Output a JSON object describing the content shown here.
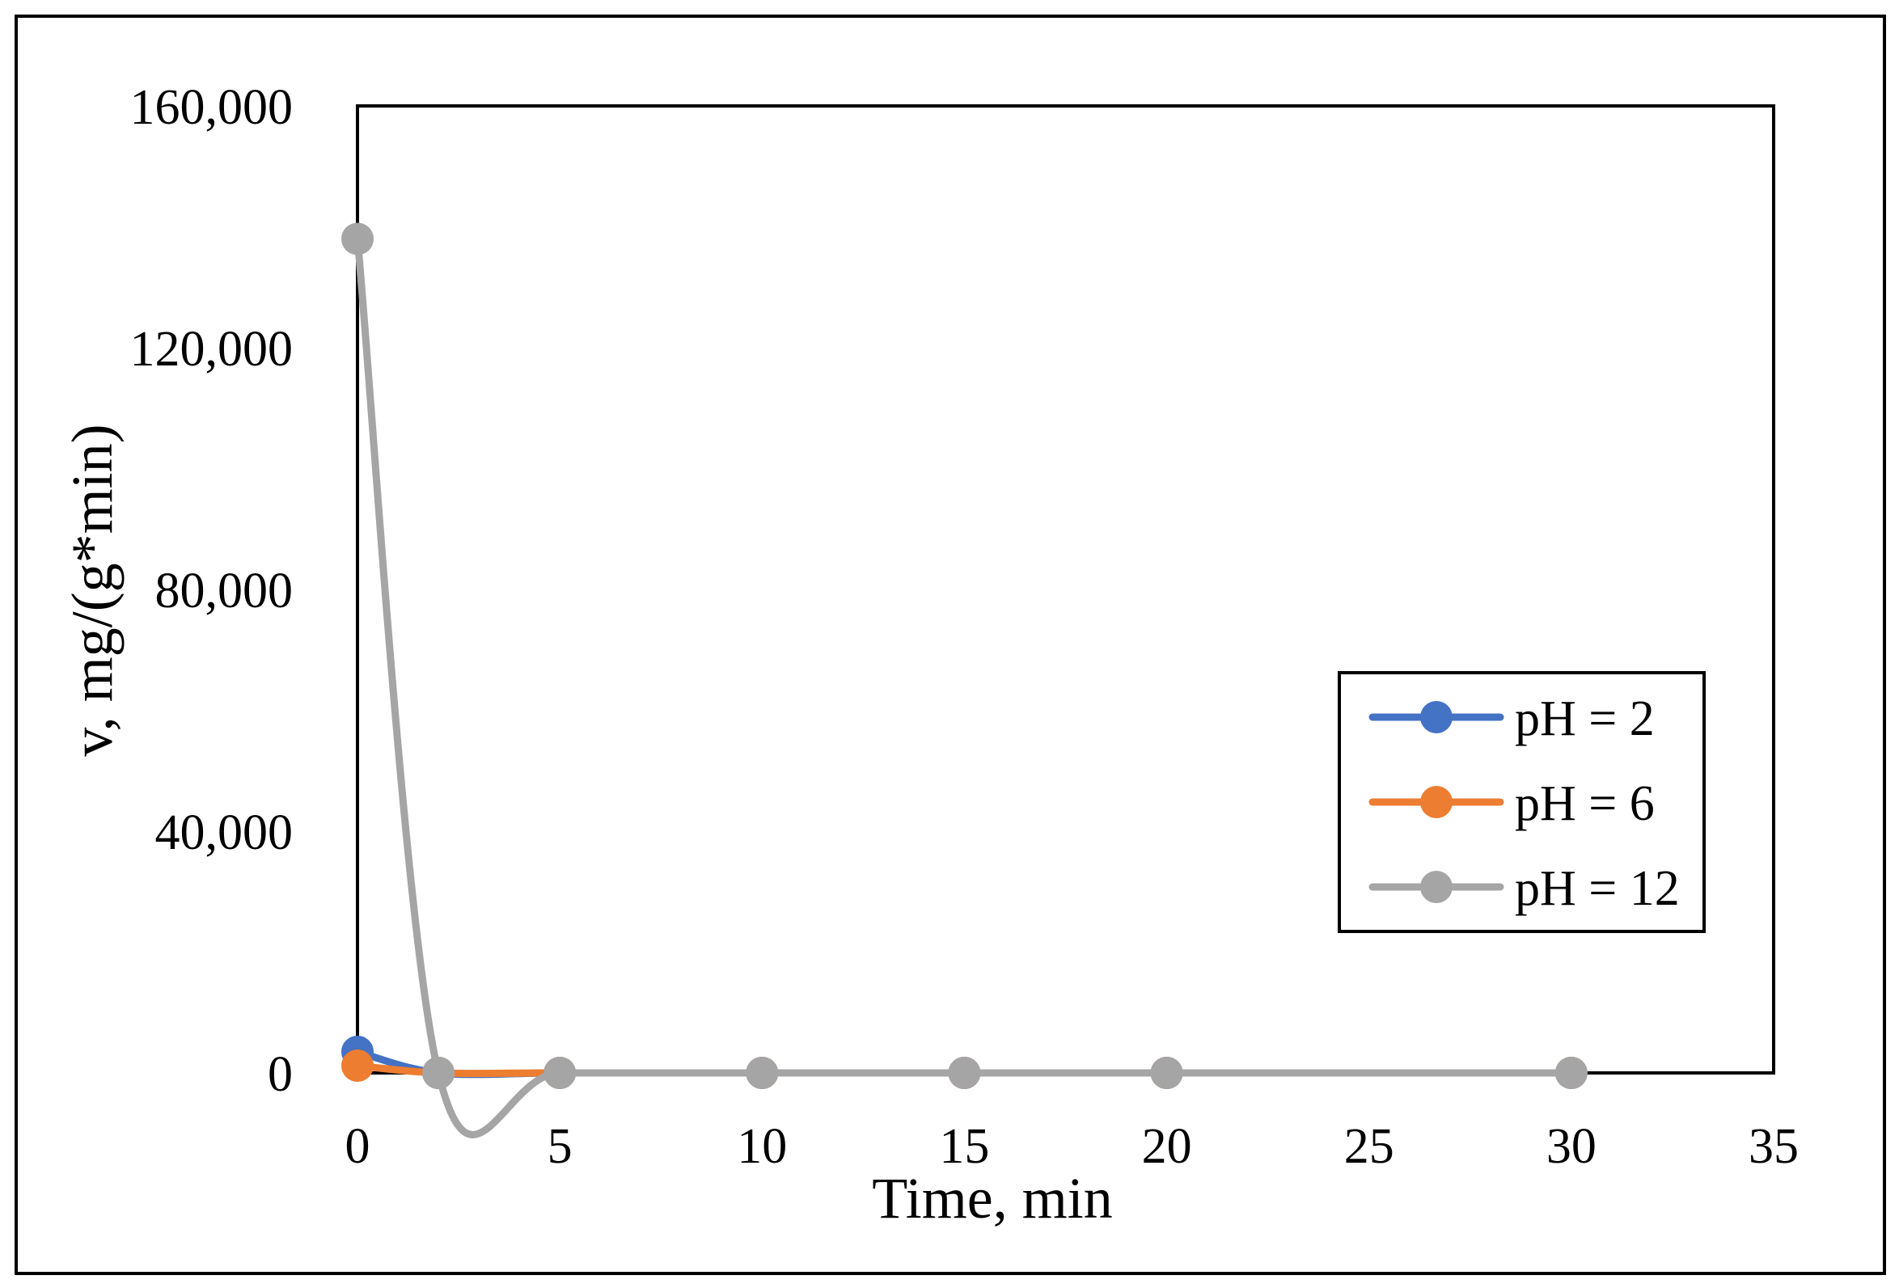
{
  "chart_data": {
    "type": "line",
    "title": "",
    "xlabel": "Time, min",
    "ylabel": "v, mg/(g*min)",
    "xlim": [
      0,
      35
    ],
    "ylim": [
      0,
      160000
    ],
    "xticks": [
      0,
      5,
      10,
      15,
      20,
      25,
      30,
      35
    ],
    "yticks": [
      0,
      40000,
      80000,
      120000,
      160000
    ],
    "xtick_labels": [
      "0",
      "5",
      "10",
      "15",
      "20",
      "25",
      "30",
      "35"
    ],
    "ytick_labels": [
      "0",
      "40,000",
      "80,000",
      "120,000",
      "160,000"
    ],
    "grid": false,
    "legend_position": "right",
    "smooth": true,
    "series": [
      {
        "name": "pH = 2",
        "color": "#4472C4",
        "points": [
          [
            0,
            3500
          ],
          [
            2,
            0
          ],
          [
            5,
            0
          ],
          [
            10,
            0
          ],
          [
            15,
            0
          ],
          [
            20,
            0
          ],
          [
            30,
            0
          ]
        ]
      },
      {
        "name": "pH = 6",
        "color": "#ED7D31",
        "points": [
          [
            0,
            1200
          ],
          [
            2,
            0
          ],
          [
            5,
            0
          ],
          [
            10,
            0
          ],
          [
            15,
            0
          ],
          [
            20,
            0
          ],
          [
            30,
            0
          ]
        ]
      },
      {
        "name": "pH = 12",
        "color": "#A5A5A5",
        "points": [
          [
            0,
            138000
          ],
          [
            2,
            0
          ],
          [
            5,
            0
          ],
          [
            10,
            0
          ],
          [
            15,
            0
          ],
          [
            20,
            0
          ],
          [
            30,
            0
          ]
        ]
      }
    ]
  }
}
